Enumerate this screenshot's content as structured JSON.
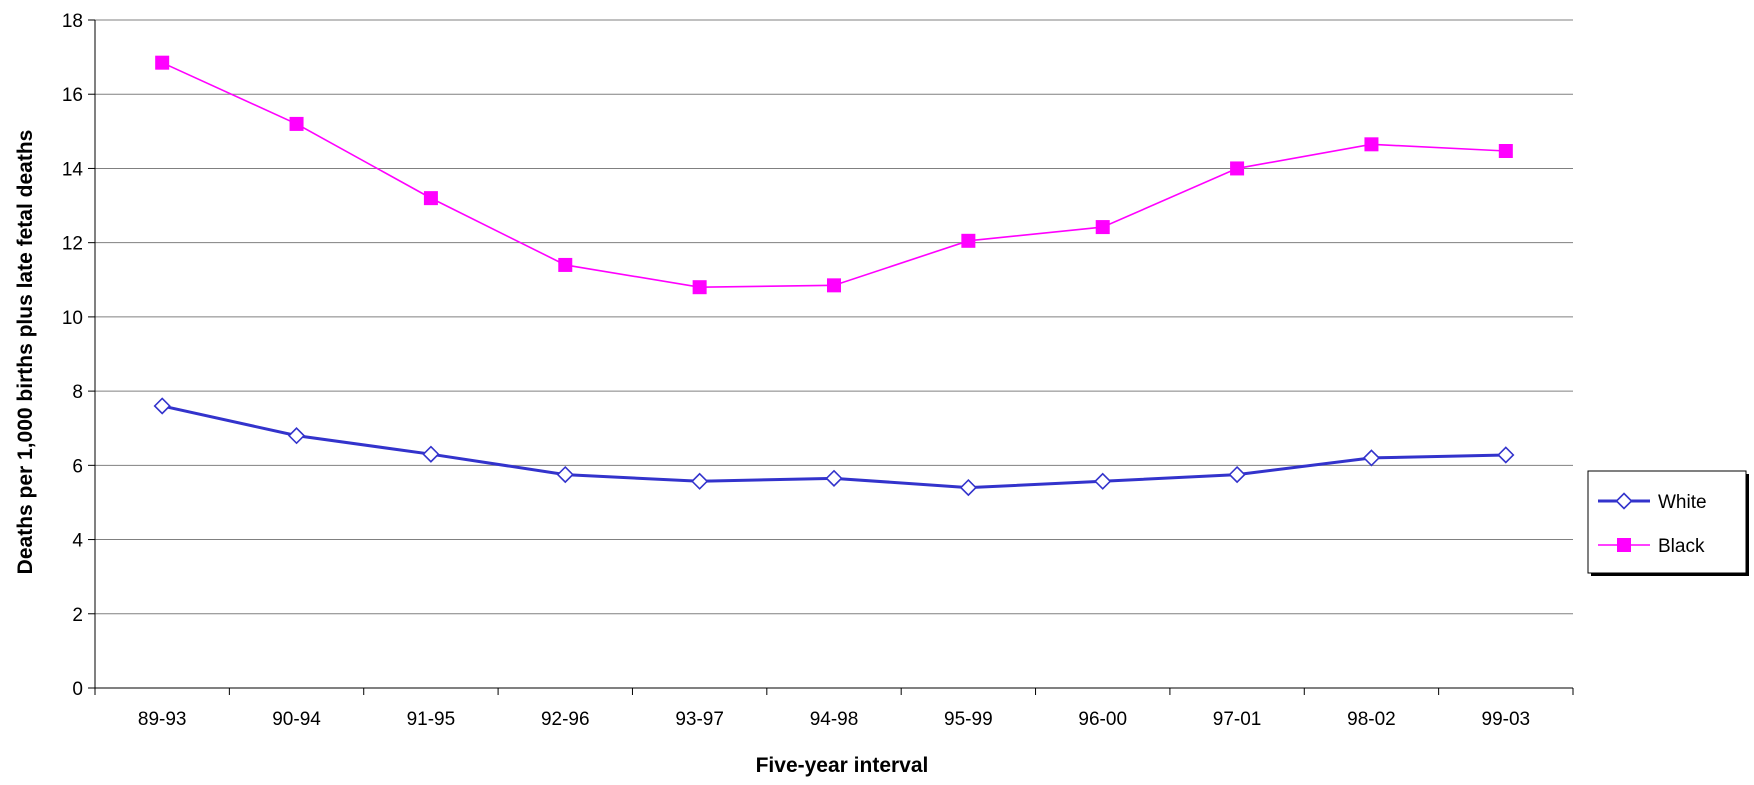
{
  "chart_data": {
    "type": "line",
    "title": "",
    "xlabel": "Five-year interval",
    "ylabel": "Deaths per 1,000 births plus late fetal deaths",
    "categories": [
      "89-93",
      "90-94",
      "91-95",
      "92-96",
      "93-97",
      "94-98",
      "95-99",
      "96-00",
      "97-01",
      "98-02",
      "99-03"
    ],
    "ylim": [
      0,
      18
    ],
    "yticks": [
      0,
      2,
      4,
      6,
      8,
      10,
      12,
      14,
      16,
      18
    ],
    "grid": "horizontal",
    "legend_position": "right",
    "series": [
      {
        "name": "White",
        "color": "#3333cc",
        "marker": "diamond-open",
        "values": [
          7.6,
          6.8,
          6.3,
          5.75,
          5.57,
          5.65,
          5.4,
          5.57,
          5.75,
          6.2,
          6.28
        ]
      },
      {
        "name": "Black",
        "color": "#ff00ff",
        "marker": "square-filled",
        "values": [
          16.85,
          15.2,
          13.2,
          11.4,
          10.8,
          10.85,
          12.05,
          12.42,
          14.0,
          14.65,
          14.47
        ]
      }
    ]
  }
}
